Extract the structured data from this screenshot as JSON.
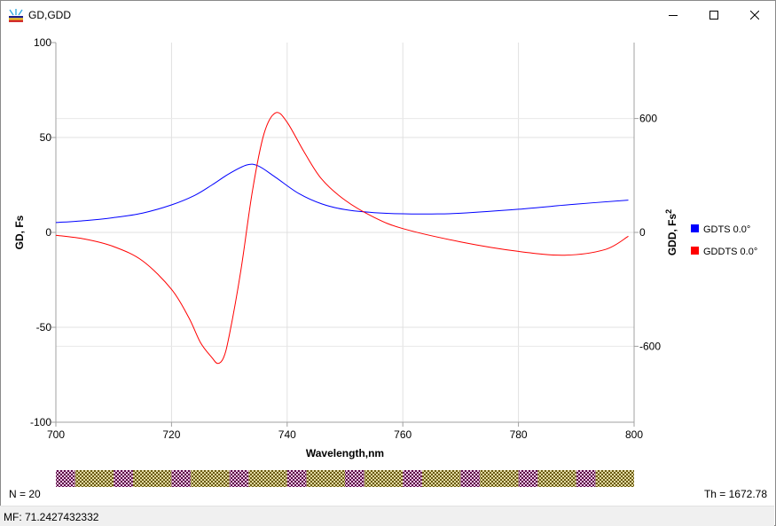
{
  "window": {
    "title": "GD,GDD",
    "icon": "spectrum-app-icon",
    "controls": [
      "minimize-icon",
      "maximize-icon",
      "close-icon"
    ]
  },
  "chart_data": {
    "type": "line",
    "title": "",
    "xlabel": "Wavelength,nm",
    "ylabel": "GD, Fs",
    "ylabel_right": "GDD, Fs",
    "ylabel_right_superscript": "2",
    "xlim": [
      700,
      800
    ],
    "ylim": [
      -100,
      100
    ],
    "ylim_right": [
      -1000,
      1000
    ],
    "x_ticks": [
      "700",
      "720",
      "740",
      "760",
      "780",
      "800"
    ],
    "y_ticks": [
      "100",
      "50",
      "0",
      "-50",
      "-100"
    ],
    "y_ticks_right": [
      "600",
      "0",
      "-600"
    ],
    "grid": true,
    "legend_position": "right",
    "series": [
      {
        "name": "GDTS 0.0°",
        "axis": "left",
        "color": "#0000ff",
        "x": [
          700,
          705,
          710,
          715,
          720,
          724,
          727,
          730,
          733,
          735,
          738,
          742,
          746,
          750,
          755,
          760,
          765,
          770,
          780,
          790,
          799
        ],
        "y": [
          5.2,
          6.2,
          7.8,
          10.2,
          14.5,
          19.5,
          25,
          31,
          35.5,
          35,
          29,
          20.5,
          15,
          12,
          10.4,
          9.8,
          9.7,
          10.1,
          12.2,
          14.9,
          17
        ]
      },
      {
        "name": "GDDTS 0.0°",
        "axis": "right",
        "color": "#ff0000",
        "x": [
          700,
          705,
          710,
          715,
          720,
          723,
          725,
          727,
          728,
          729,
          730,
          732,
          734,
          736,
          738,
          740,
          743,
          746,
          750,
          755,
          760,
          770,
          780,
          788,
          795,
          799
        ],
        "y": [
          -15,
          -35,
          -75,
          -150,
          -300,
          -450,
          -580,
          -660,
          -690,
          -660,
          -540,
          -200,
          220,
          520,
          630,
          580,
          420,
          280,
          170,
          80,
          20,
          -50,
          -100,
          -120,
          -90,
          -20
        ]
      }
    ]
  },
  "bottom": {
    "n_label": "N = 20",
    "th_label": "Th = 1672.78"
  },
  "status": {
    "mf_label": "MF: 71.2427432332"
  }
}
